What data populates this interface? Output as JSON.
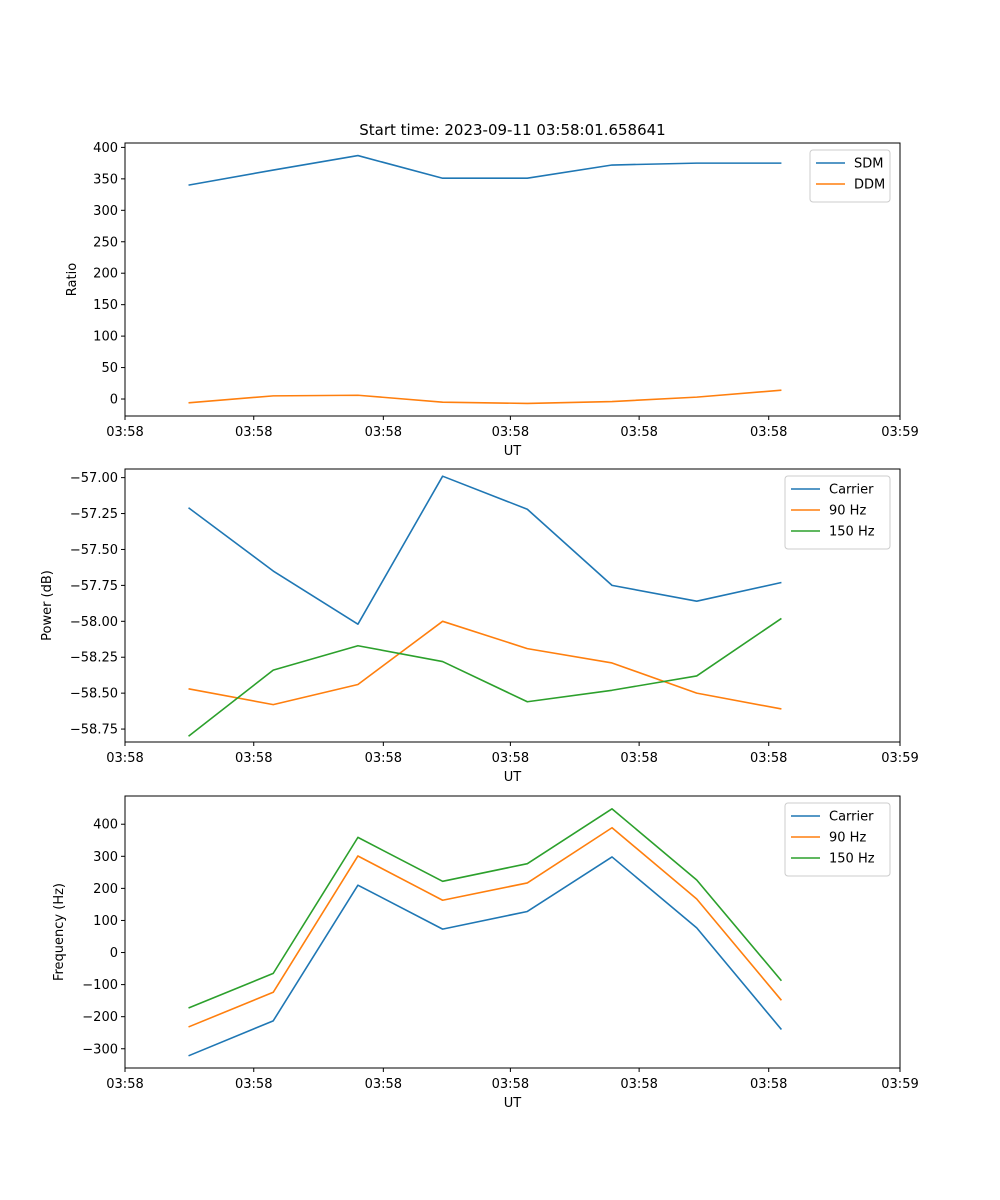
{
  "chart_data": [
    {
      "type": "line",
      "title": "Start time: 2023-09-11 03:58:01.658641",
      "xlabel": "UT",
      "ylabel": "Ratio",
      "x": [
        0,
        1,
        2,
        3,
        4,
        5,
        6,
        7
      ],
      "xlim": [
        -0.75,
        8.4
      ],
      "xticks": [
        -0.75,
        0.77,
        2.3,
        3.8,
        5.32,
        6.85,
        8.4
      ],
      "xtick_labels": [
        "03:58",
        "03:58",
        "03:58",
        "03:58",
        "03:58",
        "03:58",
        "03:59"
      ],
      "ylim": [
        -27,
        407
      ],
      "yticks": [
        0,
        50,
        100,
        150,
        200,
        250,
        300,
        350,
        400
      ],
      "ytick_labels": [
        "0",
        "50",
        "100",
        "150",
        "200",
        "250",
        "300",
        "350",
        "400"
      ],
      "legend": "top-right",
      "series": [
        {
          "name": "SDM",
          "color": "#1f77b4",
          "values": [
            340,
            364,
            387,
            351,
            351,
            372,
            375,
            375
          ]
        },
        {
          "name": "DDM",
          "color": "#ff7f0e",
          "values": [
            -6,
            5,
            6,
            -5,
            -7,
            -4,
            3,
            14
          ]
        }
      ]
    },
    {
      "type": "line",
      "title": "",
      "xlabel": "UT",
      "ylabel": "Power (dB)",
      "x": [
        0,
        1,
        2,
        3,
        4,
        5,
        6,
        7
      ],
      "xlim": [
        -0.75,
        8.4
      ],
      "xticks": [
        -0.75,
        0.77,
        2.3,
        3.8,
        5.32,
        6.85,
        8.4
      ],
      "xtick_labels": [
        "03:58",
        "03:58",
        "03:58",
        "03:58",
        "03:58",
        "03:58",
        "03:59"
      ],
      "ylim": [
        -58.84,
        -56.94
      ],
      "yticks": [
        -58.75,
        -58.5,
        -58.25,
        -58.0,
        -57.75,
        -57.5,
        -57.25,
        -57.0
      ],
      "ytick_labels": [
        "−58.75",
        "−58.50",
        "−58.25",
        "−58.00",
        "−57.75",
        "−57.50",
        "−57.25",
        "−57.00"
      ],
      "legend": "top-right",
      "series": [
        {
          "name": "Carrier",
          "color": "#1f77b4",
          "values": [
            -57.21,
            -57.65,
            -58.02,
            -56.99,
            -57.22,
            -57.75,
            -57.86,
            -57.73
          ]
        },
        {
          "name": "90 Hz",
          "color": "#ff7f0e",
          "values": [
            -58.47,
            -58.58,
            -58.44,
            -58.0,
            -58.19,
            -58.29,
            -58.5,
            -58.61
          ]
        },
        {
          "name": "150 Hz",
          "color": "#2ca02c",
          "values": [
            -58.8,
            -58.34,
            -58.17,
            -58.28,
            -58.56,
            -58.48,
            -58.38,
            -57.98
          ]
        }
      ]
    },
    {
      "type": "line",
      "title": "",
      "xlabel": "UT",
      "ylabel": "Frequency (Hz)",
      "x": [
        0,
        1,
        2,
        3,
        4,
        5,
        6,
        7
      ],
      "xlim": [
        -0.75,
        8.4
      ],
      "xticks": [
        -0.75,
        0.77,
        2.3,
        3.8,
        5.32,
        6.85,
        8.4
      ],
      "xtick_labels": [
        "03:58",
        "03:58",
        "03:58",
        "03:58",
        "03:58",
        "03:58",
        "03:59"
      ],
      "ylim": [
        -360,
        488
      ],
      "yticks": [
        -300,
        -200,
        -100,
        0,
        100,
        200,
        300,
        400
      ],
      "ytick_labels": [
        "−300",
        "−200",
        "−100",
        "0",
        "100",
        "200",
        "300",
        "400"
      ],
      "legend": "top-right",
      "series": [
        {
          "name": "Carrier",
          "color": "#1f77b4",
          "values": [
            -322,
            -213,
            210,
            73,
            128,
            298,
            77,
            -240
          ]
        },
        {
          "name": "90 Hz",
          "color": "#ff7f0e",
          "values": [
            -232,
            -124,
            301,
            163,
            217,
            389,
            167,
            -149
          ]
        },
        {
          "name": "150 Hz",
          "color": "#2ca02c",
          "values": [
            -173,
            -65,
            359,
            222,
            277,
            448,
            226,
            -88
          ]
        }
      ]
    }
  ]
}
